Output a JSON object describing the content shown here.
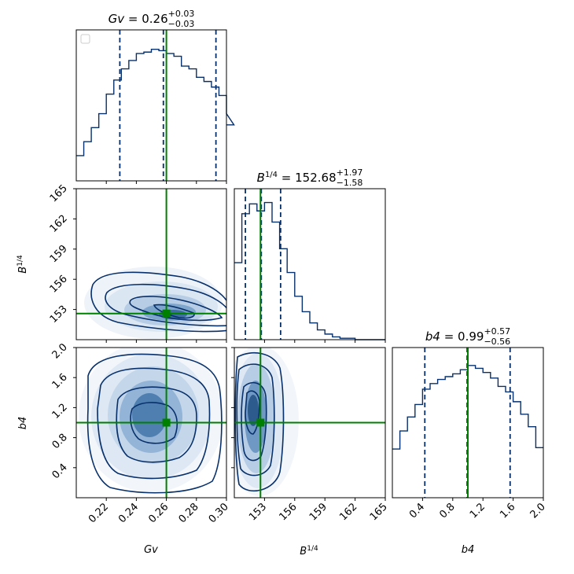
{
  "chart_data": {
    "type": "corner",
    "parameters": [
      {
        "name": "Gv",
        "label": "Gv",
        "range": [
          0.2,
          0.3
        ],
        "ticks": [
          "0.22",
          "0.24",
          "0.26",
          "0.28",
          "0.30"
        ],
        "title_prefix": "Gv",
        "median": "0.26",
        "plus": "+0.03",
        "minus": "−0.03",
        "truth": 0.26,
        "quantiles": [
          0.229,
          0.258,
          0.293
        ]
      },
      {
        "name": "B14",
        "label": "B1/4",
        "range": [
          150,
          165
        ],
        "ticks": [
          "153",
          "156",
          "159",
          "162",
          "165"
        ],
        "title_prefix": "B1/4",
        "median": "152.68",
        "plus": "+1.97",
        "minus": "−1.58",
        "truth": 152.6,
        "quantiles": [
          151.1,
          152.68,
          154.6
        ]
      },
      {
        "name": "b4",
        "label": "b4",
        "range": [
          0.0,
          2.0
        ],
        "ticks": [
          "0.4",
          "0.8",
          "1.2",
          "1.6",
          "2.0"
        ],
        "title_prefix": "b4",
        "median": "0.99",
        "plus": "+0.57",
        "minus": "−0.56",
        "truth": 1.0,
        "quantiles": [
          0.43,
          0.99,
          1.56
        ]
      }
    ],
    "y_ticks": {
      "B14": [
        "153",
        "156",
        "159",
        "162",
        "165"
      ],
      "b4": [
        "0.4",
        "0.8",
        "1.2",
        "1.6",
        "2.0"
      ]
    },
    "histograms": {
      "Gv": {
        "edges_start": 0.2,
        "bin_width": 0.005,
        "counts": [
          0.18,
          0.28,
          0.38,
          0.48,
          0.62,
          0.72,
          0.8,
          0.86,
          0.91,
          0.92,
          0.94,
          0.93,
          0.91,
          0.89,
          0.82,
          0.8,
          0.74,
          0.71,
          0.67,
          0.61,
          0.48,
          0.4
        ]
      },
      "B14": {
        "edges_start": 150,
        "bin_width": 0.75,
        "counts": [
          0.55,
          0.9,
          0.97,
          0.92,
          0.98,
          0.84,
          0.65,
          0.48,
          0.31,
          0.2,
          0.12,
          0.07,
          0.04,
          0.02,
          0.01,
          0.01,
          0.0,
          0.0,
          0.0,
          0.0
        ]
      },
      "b4": {
        "edges_start": 0.0,
        "bin_width": 0.1,
        "counts": [
          0.35,
          0.48,
          0.58,
          0.67,
          0.78,
          0.82,
          0.85,
          0.87,
          0.89,
          0.92,
          0.95,
          0.93,
          0.9,
          0.86,
          0.8,
          0.76,
          0.69,
          0.6,
          0.51,
          0.36
        ]
      }
    },
    "line_color": "#08306b",
    "truth_color": "#008000",
    "legend": "empty legend box, top-left of first panel"
  }
}
